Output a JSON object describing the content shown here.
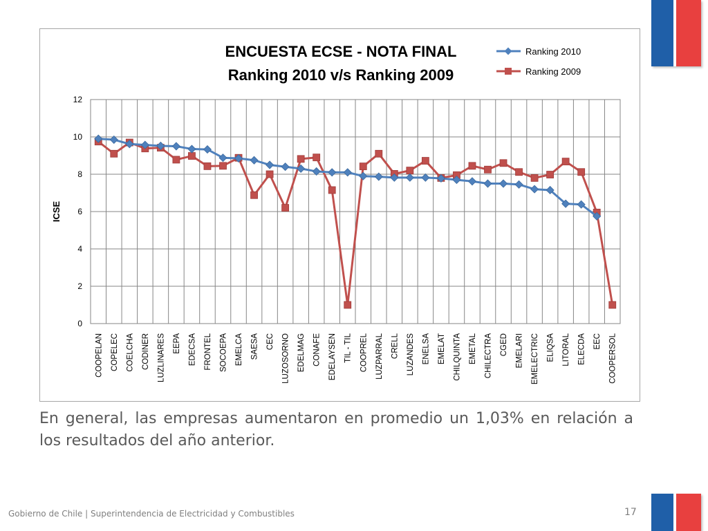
{
  "chart_data": {
    "type": "line",
    "title": [
      "ENCUESTA ECSE - NOTA FINAL",
      "Ranking 2010 v/s Ranking 2009"
    ],
    "ylabel": "ICSE",
    "xlabel": "",
    "ylim": [
      0,
      12
    ],
    "yticks": [
      0,
      2,
      4,
      6,
      8,
      10,
      12
    ],
    "grid": true,
    "legend_position": "top-right",
    "categories": [
      "COOPELAN",
      "COPELEC",
      "COELCHA",
      "CODINER",
      "LUZLINARES",
      "EEPA",
      "EDECSA",
      "FRONTEL",
      "SOCOEPA",
      "EMELCA",
      "SAESA",
      "CEC",
      "LUZOSORNO",
      "EDELMAG",
      "CONAFE",
      "EDELAYSEN",
      "TIL - TIL",
      "COOPREL",
      "LUZPARRAL",
      "CRELL",
      "LUZANDES",
      "ENELSA",
      "EMELAT",
      "CHILQUINTA",
      "EMETAL",
      "CHILECTRA",
      "CGED",
      "EMELARI",
      "EMELECTRIC",
      "ELIQSA",
      "LITORAL",
      "ELECDA",
      "EEC",
      "COOPERSOL"
    ],
    "series": [
      {
        "name": "Ranking 2010",
        "color": "#4f81bd",
        "marker": "diamond",
        "values": [
          9.9,
          9.85,
          9.62,
          9.57,
          9.52,
          9.5,
          9.35,
          9.33,
          8.88,
          8.85,
          8.75,
          8.5,
          8.4,
          8.3,
          8.15,
          8.1,
          8.1,
          7.9,
          7.87,
          7.82,
          7.82,
          7.82,
          7.78,
          7.7,
          7.62,
          7.5,
          7.5,
          7.45,
          7.2,
          7.15,
          6.42,
          6.38,
          5.75,
          null
        ]
      },
      {
        "name": "Ranking 2009",
        "color": "#c0504d",
        "marker": "square",
        "values": [
          9.75,
          9.1,
          9.7,
          9.38,
          9.42,
          8.78,
          8.98,
          8.43,
          8.45,
          8.88,
          6.88,
          8.0,
          6.2,
          8.82,
          8.9,
          7.15,
          1.0,
          8.42,
          9.1,
          8.02,
          8.2,
          8.72,
          7.8,
          7.95,
          8.45,
          8.25,
          8.6,
          8.12,
          7.8,
          7.98,
          8.68,
          8.12,
          5.95,
          1.0
        ]
      }
    ]
  },
  "caption": "En general, las empresas aumentaron en promedio un 1,03% en relación a los resultados del año anterior.",
  "footer": "Gobierno de Chile | Superintendencia de Electricidad y Combustibles",
  "page_number": "17"
}
